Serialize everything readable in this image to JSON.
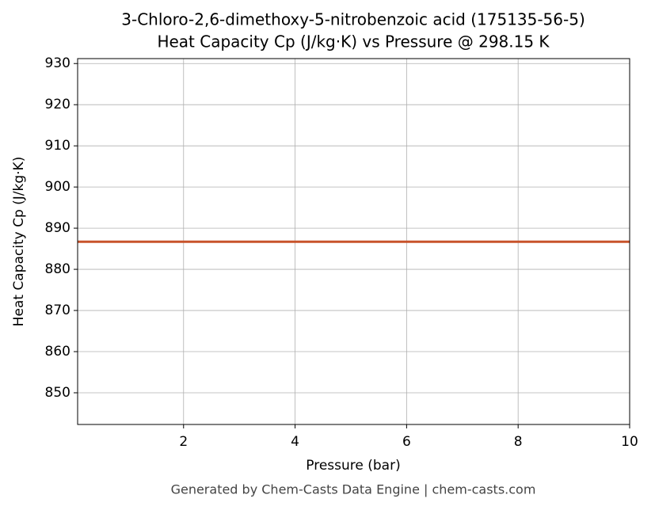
{
  "chart_data": {
    "type": "line",
    "title": "3-Chloro-2,6-dimethoxy-5-nitrobenzoic acid (175135-56-5)",
    "subtitle": "Heat Capacity Cp (J/kg·K) vs Pressure @ 298.15 K",
    "xlabel": "Pressure (bar)",
    "ylabel": "Heat Capacity Cp (J/kg·K)",
    "footer": "Generated by Chem-Casts Data Engine | chem-casts.com",
    "x": [
      0.1,
      1,
      2,
      3,
      4,
      5,
      6,
      7,
      8,
      9,
      10
    ],
    "series": [
      {
        "name": "Cp",
        "color": "#c8532b",
        "values": [
          886.7,
          886.7,
          886.7,
          886.7,
          886.7,
          886.7,
          886.7,
          886.7,
          886.7,
          886.7,
          886.7
        ]
      }
    ],
    "xlim": [
      0.1,
      10
    ],
    "xticks": [
      2,
      4,
      6,
      8,
      10
    ],
    "ylim": [
      842.3,
      931.2
    ],
    "yticks": [
      850,
      860,
      870,
      880,
      890,
      900,
      910,
      920,
      930
    ],
    "grid": true
  }
}
